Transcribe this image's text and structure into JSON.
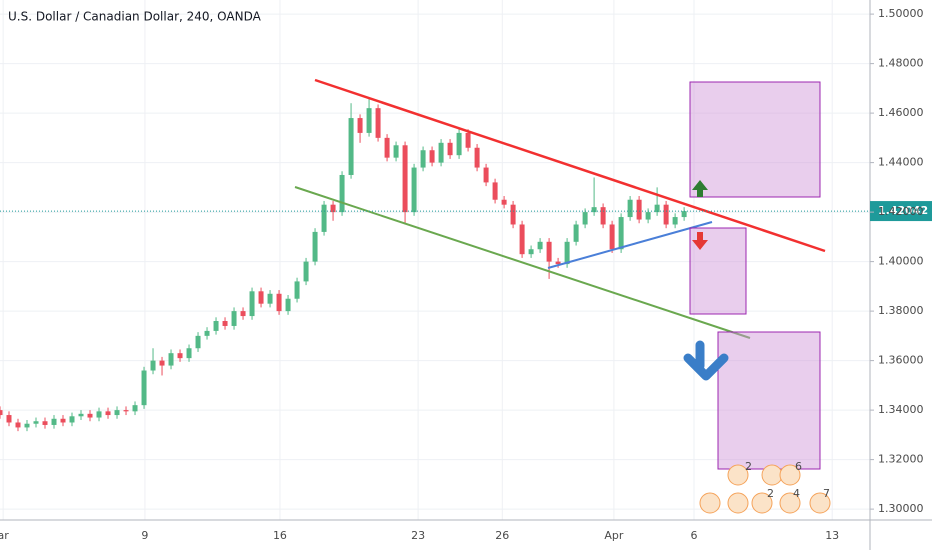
{
  "chart_data": {
    "type": "candlestick",
    "title": "U.S. Dollar / Canadian Dollar, 240, OANDA",
    "up_color": "#53b987",
    "down_color": "#eb4d5c",
    "grid": true,
    "xlim": [
      0,
      193.3
    ],
    "xticks": [
      {
        "value": 0.7,
        "label": "ar"
      },
      {
        "value": 32.2,
        "label": "9"
      },
      {
        "value": 62.2,
        "label": "16"
      },
      {
        "value": 92.9,
        "label": "23"
      },
      {
        "value": 111.6,
        "label": "26"
      },
      {
        "value": 136.4,
        "label": "Apr"
      },
      {
        "value": 154.2,
        "label": "6"
      },
      {
        "value": 184.9,
        "label": "13"
      }
    ],
    "ylim": [
      1.2956,
      1.5057
    ],
    "yticks": [
      {
        "value": 1.3,
        "label": "1.30000"
      },
      {
        "value": 1.32,
        "label": "1.32000"
      },
      {
        "value": 1.34,
        "label": "1.34000"
      },
      {
        "value": 1.36,
        "label": "1.36000"
      },
      {
        "value": 1.38,
        "label": "1.38000"
      },
      {
        "value": 1.4,
        "label": "1.40000"
      },
      {
        "value": 1.42,
        "label": "1.42000"
      },
      {
        "value": 1.44,
        "label": "1.44000"
      },
      {
        "value": 1.46,
        "label": "1.46000"
      },
      {
        "value": 1.48,
        "label": "1.48000"
      },
      {
        "value": 1.5,
        "label": "1.50000"
      }
    ],
    "last_price": {
      "value": 1.42042,
      "label": "1.42042"
    },
    "event_counts": [
      2,
      6,
      2,
      4,
      7
    ],
    "x": [
      0,
      2,
      4,
      6,
      8,
      10,
      12,
      14,
      16,
      18,
      20,
      22,
      24,
      26,
      28,
      30,
      32,
      34,
      36,
      38,
      40,
      42,
      44,
      46,
      48,
      50,
      52,
      54,
      56,
      58,
      60,
      62,
      64,
      66,
      68,
      70,
      72,
      74,
      76,
      78,
      80,
      82,
      84,
      86,
      88,
      90,
      92,
      94,
      96,
      98,
      100,
      102,
      104,
      106,
      108,
      110,
      112,
      114,
      116,
      118,
      120,
      122,
      124,
      126,
      128,
      130,
      132,
      134,
      136,
      138,
      140,
      142,
      144,
      146,
      148,
      150,
      152
    ],
    "open": [
      1.34,
      1.338,
      1.335,
      1.333,
      1.3345,
      1.3355,
      1.334,
      1.3365,
      1.335,
      1.3375,
      1.3385,
      1.337,
      1.3395,
      1.338,
      1.34,
      1.3395,
      1.342,
      1.356,
      1.36,
      1.358,
      1.363,
      1.361,
      1.365,
      1.37,
      1.372,
      1.376,
      1.374,
      1.38,
      1.378,
      1.388,
      1.383,
      1.387,
      1.38,
      1.385,
      1.392,
      1.4,
      1.412,
      1.423,
      1.42,
      1.435,
      1.458,
      1.452,
      1.462,
      1.45,
      1.442,
      1.447,
      1.42,
      1.438,
      1.445,
      1.44,
      1.448,
      1.443,
      1.452,
      1.446,
      1.438,
      1.432,
      1.425,
      1.423,
      1.415,
      1.403,
      1.405,
      1.408,
      1.4,
      1.399,
      1.408,
      1.415,
      1.42,
      1.422,
      1.415,
      1.405,
      1.418,
      1.425,
      1.417,
      1.42,
      1.423,
      1.415,
      1.418
    ],
    "high": [
      1.3415,
      1.3395,
      1.3365,
      1.336,
      1.337,
      1.337,
      1.338,
      1.338,
      1.339,
      1.34,
      1.34,
      1.341,
      1.341,
      1.3415,
      1.3415,
      1.3435,
      1.3575,
      1.365,
      1.3615,
      1.3645,
      1.3645,
      1.3665,
      1.3715,
      1.3735,
      1.3775,
      1.3775,
      1.3815,
      1.3815,
      1.3895,
      1.3895,
      1.3885,
      1.3885,
      1.3865,
      1.3935,
      1.4015,
      1.4135,
      1.4245,
      1.4245,
      1.4365,
      1.464,
      1.4595,
      1.466,
      1.4635,
      1.4515,
      1.4485,
      1.4485,
      1.4395,
      1.4465,
      1.4465,
      1.4495,
      1.4495,
      1.454,
      1.4535,
      1.4475,
      1.4395,
      1.4335,
      1.4265,
      1.4245,
      1.4165,
      1.4065,
      1.4095,
      1.4095,
      1.4015,
      1.4095,
      1.4165,
      1.4215,
      1.434,
      1.4235,
      1.4165,
      1.4195,
      1.4265,
      1.4265,
      1.4215,
      1.43,
      1.4245,
      1.4195,
      1.422
    ],
    "low": [
      1.3365,
      1.3335,
      1.3315,
      1.3315,
      1.333,
      1.3325,
      1.3325,
      1.3335,
      1.3335,
      1.336,
      1.3355,
      1.3355,
      1.3365,
      1.3365,
      1.338,
      1.338,
      1.3405,
      1.3545,
      1.354,
      1.3565,
      1.3595,
      1.3595,
      1.3635,
      1.3685,
      1.3705,
      1.3725,
      1.3725,
      1.3765,
      1.3765,
      1.3815,
      1.3815,
      1.3785,
      1.3785,
      1.3835,
      1.3905,
      1.3985,
      1.4105,
      1.4165,
      1.4185,
      1.4335,
      1.448,
      1.4505,
      1.4485,
      1.4405,
      1.4405,
      1.415,
      1.4185,
      1.4365,
      1.4385,
      1.4385,
      1.4415,
      1.4415,
      1.4445,
      1.4365,
      1.4305,
      1.4235,
      1.4215,
      1.4135,
      1.4015,
      1.4015,
      1.4035,
      1.393,
      1.3975,
      1.3975,
      1.4065,
      1.4135,
      1.4185,
      1.4135,
      1.4035,
      1.4035,
      1.4165,
      1.4155,
      1.4155,
      1.4185,
      1.4135,
      1.4135,
      1.4165
    ],
    "close": [
      1.338,
      1.335,
      1.333,
      1.3345,
      1.3355,
      1.334,
      1.3365,
      1.335,
      1.3375,
      1.3385,
      1.337,
      1.3395,
      1.338,
      1.34,
      1.3395,
      1.342,
      1.356,
      1.36,
      1.358,
      1.363,
      1.361,
      1.365,
      1.37,
      1.372,
      1.376,
      1.374,
      1.38,
      1.378,
      1.388,
      1.383,
      1.387,
      1.38,
      1.385,
      1.392,
      1.4,
      1.412,
      1.423,
      1.42,
      1.435,
      1.458,
      1.452,
      1.462,
      1.45,
      1.442,
      1.447,
      1.42,
      1.438,
      1.445,
      1.44,
      1.448,
      1.443,
      1.452,
      1.446,
      1.438,
      1.432,
      1.425,
      1.423,
      1.415,
      1.403,
      1.405,
      1.408,
      1.4,
      1.399,
      1.408,
      1.415,
      1.42,
      1.422,
      1.415,
      1.405,
      1.418,
      1.425,
      1.417,
      1.42,
      1.423,
      1.415,
      1.418,
      1.4204
    ]
  }
}
